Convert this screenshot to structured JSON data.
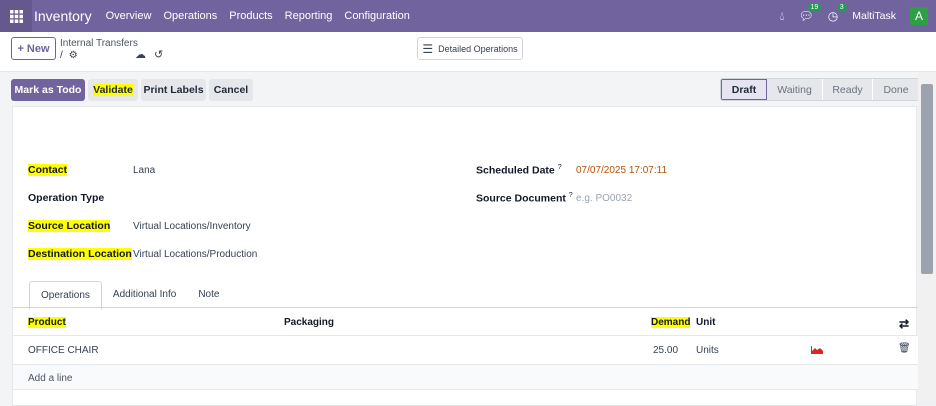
{
  "navbar": {
    "app": "Inventory",
    "menus": [
      "Overview",
      "Operations",
      "Products",
      "Reporting",
      "Configuration"
    ],
    "messages_count": "19",
    "activities_count": "3",
    "company": "MaltiTask",
    "avatar_letter": "A",
    "color": "#71639e"
  },
  "control": {
    "new_label": "New",
    "breadcrumb": "Internal Transfers",
    "breadcrumb_sep": "/",
    "detailed_ops": "Detailed Operations"
  },
  "actions": {
    "mark_todo": "Mark as Todo",
    "validate": "Validate",
    "print_labels": "Print Labels",
    "cancel": "Cancel"
  },
  "statusbar": {
    "stages": [
      "Draft",
      "Waiting",
      "Ready",
      "Done"
    ],
    "active": "Draft"
  },
  "form": {
    "contact_label": "Contact",
    "contact": "Lana",
    "operation_type_label": "Operation Type",
    "source_location_label": "Source Location",
    "source_location": "Virtual Locations/Inventory",
    "dest_location_label": "Destination Location",
    "dest_location": "Virtual Locations/Production",
    "scheduled_date_label": "Scheduled Date",
    "scheduled_date": "07/07/2025 17:07:11",
    "source_document_label": "Source Document",
    "source_document_placeholder": "e.g. PO0032",
    "help_mark": "?"
  },
  "tabs": [
    "Operations",
    "Additional Info",
    "Note"
  ],
  "table": {
    "headers": {
      "product": "Product",
      "packaging": "Packaging",
      "demand": "Demand",
      "unit": "Unit"
    },
    "rows": [
      {
        "product": "OFFICE CHAIR",
        "packaging": "",
        "demand": "25.00",
        "unit": "Units"
      }
    ],
    "add_line": "Add a line"
  },
  "highlight_color": "#ffff00"
}
